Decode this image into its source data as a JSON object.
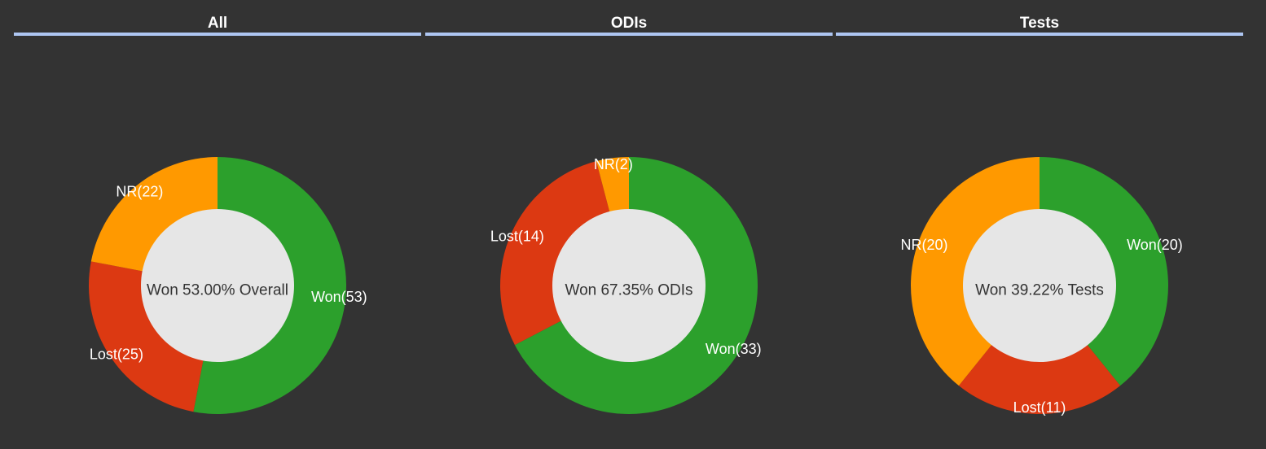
{
  "colors": {
    "won": "#2ca02c",
    "lost": "#dc3912",
    "nr": "#ff9900",
    "hole": "#e6e6e6",
    "background": "#333333",
    "header_rule": "#aec6f2"
  },
  "chart_data": [
    {
      "type": "pie",
      "title": "All",
      "center_label": "Won 53.00% Overall",
      "slices": [
        {
          "label": "Won",
          "value": 53,
          "display": "Won(53)"
        },
        {
          "label": "Lost",
          "value": 25,
          "display": "Lost(25)"
        },
        {
          "label": "NR",
          "value": 22,
          "display": "NR(22)"
        }
      ]
    },
    {
      "type": "pie",
      "title": "ODIs",
      "center_label": "Won 67.35% ODIs",
      "slices": [
        {
          "label": "Won",
          "value": 33,
          "display": "Won(33)"
        },
        {
          "label": "Lost",
          "value": 14,
          "display": "Lost(14)"
        },
        {
          "label": "NR",
          "value": 2,
          "display": "NR(2)"
        }
      ]
    },
    {
      "type": "pie",
      "title": "Tests",
      "center_label": "Won 39.22% Tests",
      "slices": [
        {
          "label": "Won",
          "value": 20,
          "display": "Won(20)"
        },
        {
          "label": "Lost",
          "value": 11,
          "display": "Lost(11)"
        },
        {
          "label": "NR",
          "value": 20,
          "display": "NR(20)"
        }
      ]
    }
  ]
}
